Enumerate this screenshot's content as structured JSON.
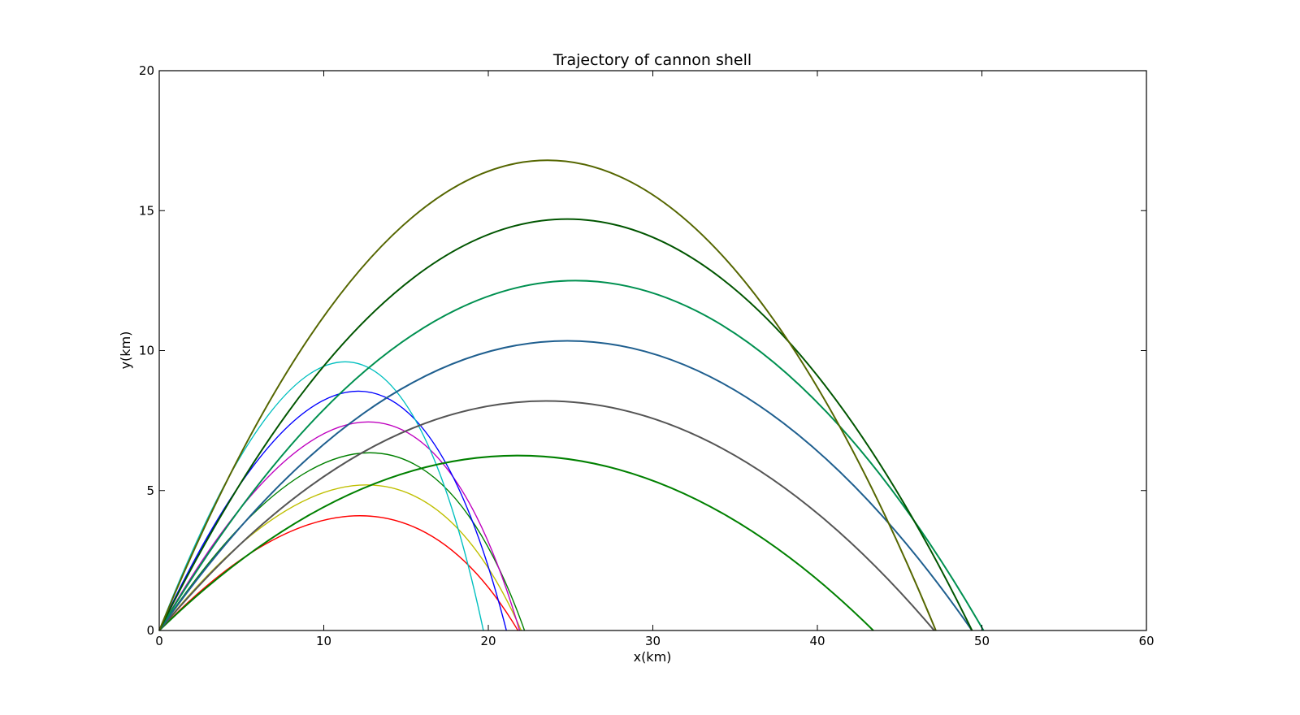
{
  "chart_data": {
    "type": "line",
    "title": "Trajectory of cannon shell",
    "xlabel": "x(km)",
    "ylabel": "y(km)",
    "xlim": [
      0,
      60
    ],
    "ylim": [
      0,
      20
    ],
    "xticks": [
      "0",
      "10",
      "20",
      "30",
      "40",
      "50",
      "60"
    ],
    "yticks": [
      "0",
      "5",
      "10",
      "15",
      "20"
    ],
    "grid": false,
    "series": [
      {
        "color": "#ff0000",
        "range": 21.8,
        "peak_x": 12.2,
        "peak_y": 4.1
      },
      {
        "color": "#bfbf00",
        "range": 22.0,
        "peak_x": 12.6,
        "peak_y": 5.2
      },
      {
        "color": "#008000",
        "range": 22.2,
        "peak_x": 12.8,
        "peak_y": 6.35
      },
      {
        "color": "#bf00bf",
        "range": 21.9,
        "peak_x": 12.7,
        "peak_y": 7.45
      },
      {
        "color": "#0000ff",
        "range": 21.1,
        "peak_x": 12.1,
        "peak_y": 8.55
      },
      {
        "color": "#00bfbf",
        "range": 19.7,
        "peak_x": 11.3,
        "peak_y": 9.6
      },
      {
        "color": "#008000",
        "range": 43.4,
        "peak_x": 21.8,
        "peak_y": 6.25
      },
      {
        "color": "#555555",
        "range": 47.1,
        "peak_x": 23.5,
        "peak_y": 8.2
      },
      {
        "color": "#1f5f8f",
        "range": 49.4,
        "peak_x": 24.8,
        "peak_y": 10.35
      },
      {
        "color": "#009050",
        "range": 50.1,
        "peak_x": 25.3,
        "peak_y": 12.5
      },
      {
        "color": "#005500",
        "range": 49.4,
        "peak_x": 24.8,
        "peak_y": 14.7
      },
      {
        "color": "#556600",
        "range": 47.2,
        "peak_x": 23.6,
        "peak_y": 16.8
      }
    ]
  }
}
